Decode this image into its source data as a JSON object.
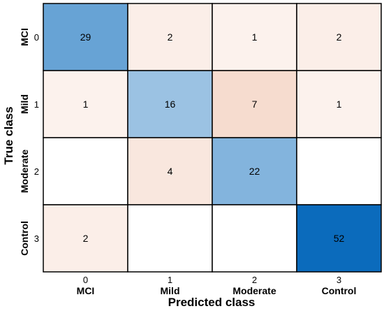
{
  "chart_data": {
    "type": "heatmap",
    "xlabel": "Predicted class",
    "ylabel": "True class",
    "x_tick_numbers": [
      "0",
      "1",
      "2",
      "3"
    ],
    "x_tick_names": [
      "MCI",
      "Mild",
      "Moderate",
      "Control"
    ],
    "y_tick_numbers": [
      "0",
      "1",
      "2",
      "3"
    ],
    "y_tick_names": [
      "MCI",
      "Mild",
      "Moderate",
      "Control"
    ],
    "matrix": [
      [
        29,
        2,
        1,
        2
      ],
      [
        1,
        16,
        7,
        1
      ],
      [
        null,
        4,
        22,
        null
      ],
      [
        2,
        null,
        null,
        52
      ]
    ],
    "colors": {
      "diagonal_max": "#0b6bbc",
      "off_diagonal_max": "#f6dccf",
      "empty": "#ffffff",
      "grid_line": "#000000"
    }
  }
}
